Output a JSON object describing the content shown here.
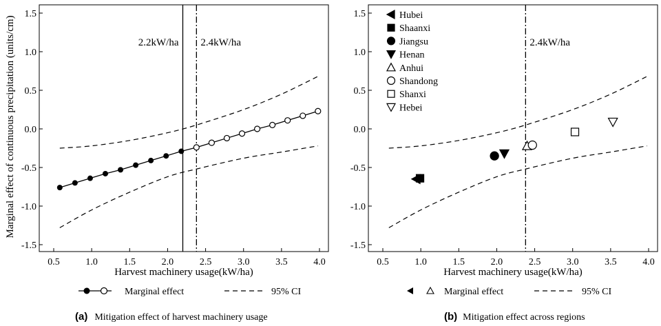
{
  "ylabel_shared": "Marginal effect of continuous precipitation (units/cm)",
  "chart_data": [
    {
      "type": "line",
      "panel_tag": "(a)",
      "caption": "Mitigation effect of harvest machinery usage",
      "xlabel": "Harvest machinery usage(kW/ha)",
      "ylabel": "Marginal effect of continuous precipitation (units/cm)",
      "xlim": [
        0.4,
        4.1
      ],
      "ylim": [
        -1.6,
        1.6
      ],
      "xticks": [
        "0.5",
        "1.0",
        "1.5",
        "2.0",
        "2.5",
        "3.0",
        "3.5",
        "4.0"
      ],
      "yticks": [
        "-1.5",
        "-1.0",
        "-0.5",
        "0.0",
        "0.5",
        "1.0",
        "1.5"
      ],
      "threshold_lines": [
        {
          "x": 2.2,
          "label": "2.2kW/ha",
          "style": "solid"
        },
        {
          "x": 2.38,
          "label": "2.4kW/ha",
          "style": "dashdot"
        }
      ],
      "series": [
        {
          "name": "Marginal effect",
          "x_filled": [
            0.58,
            0.78,
            0.98,
            1.18,
            1.38,
            1.58,
            1.78,
            1.98,
            2.18
          ],
          "y_filled": [
            -0.76,
            -0.7,
            -0.64,
            -0.58,
            -0.53,
            -0.47,
            -0.41,
            -0.35,
            -0.29
          ],
          "x_open": [
            2.38,
            2.58,
            2.78,
            2.98,
            3.18,
            3.38,
            3.58,
            3.78,
            3.98
          ],
          "y_open": [
            -0.24,
            -0.18,
            -0.12,
            -0.06,
            0.0,
            0.05,
            0.11,
            0.17,
            0.23
          ]
        },
        {
          "name": "95% CI",
          "x": [
            0.58,
            1.0,
            1.5,
            2.0,
            2.38,
            3.0,
            3.5,
            3.98
          ],
          "upper": [
            -0.25,
            -0.22,
            -0.15,
            -0.05,
            0.05,
            0.25,
            0.45,
            0.68
          ],
          "lower": [
            -1.28,
            -1.05,
            -0.82,
            -0.62,
            -0.52,
            -0.38,
            -0.3,
            -0.22
          ]
        }
      ],
      "legend": {
        "marker_label": "Marginal effect",
        "ci_label": "95% CI",
        "placement": "bottom"
      }
    },
    {
      "type": "scatter",
      "panel_tag": "(b)",
      "caption": "Mitigation effect across regions",
      "xlabel": "Harvest machinery usage(kW/ha)",
      "xlim": [
        0.4,
        4.1
      ],
      "ylim": [
        -1.6,
        1.6
      ],
      "xticks": [
        "0.5",
        "1.0",
        "1.5",
        "2.0",
        "2.5",
        "3.0",
        "3.5",
        "4.0"
      ],
      "yticks": [
        "-1.5",
        "-1.0",
        "-0.5",
        "0.0",
        "0.5",
        "1.0",
        "1.5"
      ],
      "threshold_lines": [
        {
          "x": 2.38,
          "label": "2.4kW/ha",
          "style": "dashdot"
        }
      ],
      "regions": [
        {
          "name": "Hubei",
          "marker": "triangle-left-filled",
          "x": 0.94,
          "y": -0.65
        },
        {
          "name": "Shaanxi",
          "marker": "square-filled",
          "x": 0.99,
          "y": -0.64
        },
        {
          "name": "Jiangsu",
          "marker": "circle-filled",
          "x": 1.97,
          "y": -0.35
        },
        {
          "name": "Henan",
          "marker": "triangle-down-filled",
          "x": 2.1,
          "y": -0.32
        },
        {
          "name": "Anhui",
          "marker": "triangle-up-open",
          "x": 2.4,
          "y": -0.22
        },
        {
          "name": "Shandong",
          "marker": "circle-open",
          "x": 2.47,
          "y": -0.21
        },
        {
          "name": "Shanxi",
          "marker": "square-open",
          "x": 3.03,
          "y": -0.04
        },
        {
          "name": "Hebei",
          "marker": "triangle-down-open",
          "x": 3.53,
          "y": 0.09
        }
      ],
      "ci": {
        "x": [
          0.58,
          1.0,
          1.5,
          2.0,
          2.38,
          3.0,
          3.5,
          3.98
        ],
        "upper": [
          -0.25,
          -0.22,
          -0.15,
          -0.05,
          0.05,
          0.25,
          0.45,
          0.68
        ],
        "lower": [
          -1.28,
          -1.05,
          -0.82,
          -0.62,
          -0.52,
          -0.38,
          -0.3,
          -0.22
        ]
      },
      "legend": {
        "marker_label": "Marginal effect",
        "ci_label": "95% CI",
        "placement": "bottom"
      }
    }
  ]
}
